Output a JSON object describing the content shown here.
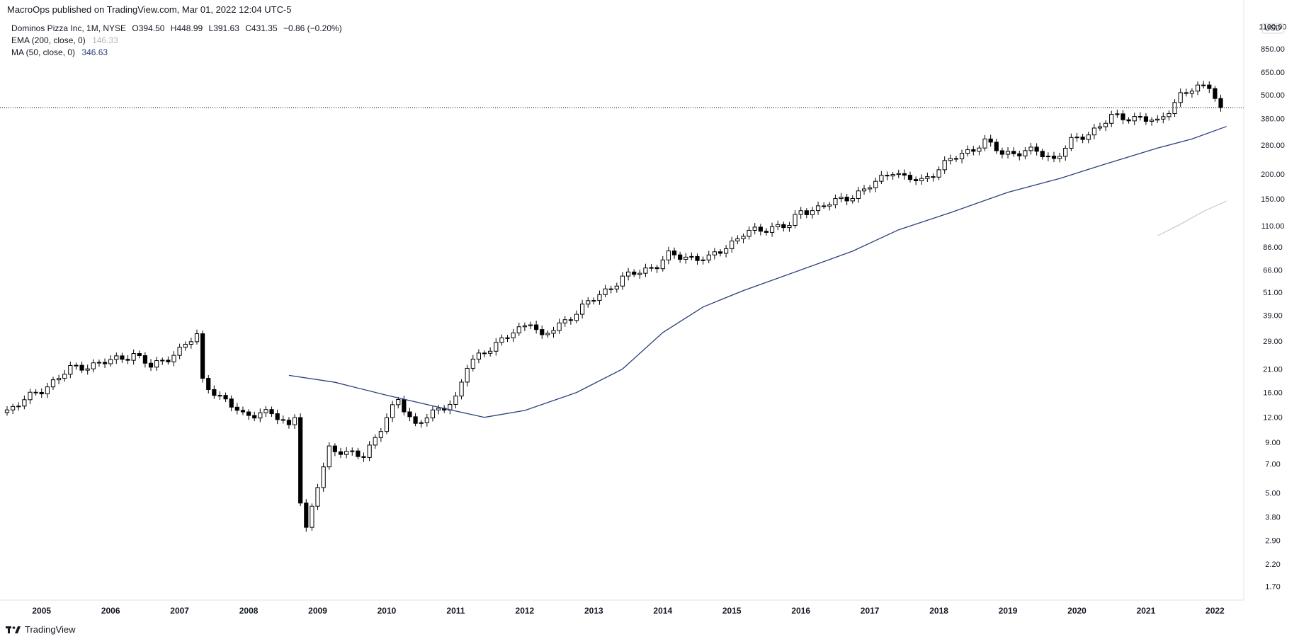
{
  "header": {
    "published_line": "MacroOps published on TradingView.com, Mar 01, 2022 12:04 UTC-5"
  },
  "legend": {
    "symbol": "Dominos Pizza Inc, 1M, NYSE",
    "open": "O394.50",
    "high": "H448.99",
    "low": "L391.63",
    "close": "C431.35",
    "change": "−0.86 (−0.20%)",
    "ema_label": "EMA (200, close, 0)",
    "ema_value": "146.33",
    "ma_label": "MA (50, close, 0)",
    "ma_value": "346.63"
  },
  "footer": {
    "brand": "TradingView"
  },
  "colors": {
    "candle_up_fill": "#ffffff",
    "candle_down_fill": "#000000",
    "candle_border": "#000000",
    "ma_line": "#2a3f7a",
    "ema_line": "#c8cace",
    "price_line": "#000000"
  },
  "chart_data": {
    "type": "candlestick",
    "title": "Dominos Pizza Inc, 1M, NYSE",
    "y_scale": "log",
    "currency": "USD",
    "y_ticks": [
      1100,
      850,
      650,
      500,
      380,
      280,
      200,
      150,
      110,
      86,
      66,
      51,
      39,
      29,
      21,
      16,
      12,
      9,
      7,
      5,
      3.8,
      2.9,
      2.2,
      1.7
    ],
    "y_tick_labels": [
      "1100.00",
      "850.00",
      "650.00",
      "500.00",
      "380.00",
      "280.00",
      "200.00",
      "150.00",
      "110.00",
      "86.00",
      "66.00",
      "51.00",
      "39.00",
      "29.00",
      "21.00",
      "16.00",
      "12.00",
      "9.00",
      "7.00",
      "5.00",
      "3.80",
      "2.90",
      "2.20",
      "1.70"
    ],
    "y_axis_unit": "USD",
    "x_ticks": [
      "2005",
      "2006",
      "2007",
      "2008",
      "2009",
      "2010",
      "2011",
      "2012",
      "2013",
      "2014",
      "2015",
      "2016",
      "2017",
      "2018",
      "2019",
      "2020",
      "2021",
      "2022"
    ],
    "x_range": [
      "2004-07",
      "2022-06"
    ],
    "y_range": [
      1.45,
      1250
    ],
    "current_close": 431.35,
    "anchors": [
      [
        "2004-07",
        13.0
      ],
      [
        "2005-01",
        16.5
      ],
      [
        "2005-06",
        21.0
      ],
      [
        "2006-01",
        23.0
      ],
      [
        "2006-05",
        25.0
      ],
      [
        "2006-08",
        21.5
      ],
      [
        "2007-01",
        26.0
      ],
      [
        "2007-04",
        31.0
      ],
      [
        "2007-05",
        18.5
      ],
      [
        "2007-08",
        15.0
      ],
      [
        "2007-12",
        12.5
      ],
      [
        "2008-05",
        12.5
      ],
      [
        "2008-08",
        11.0
      ],
      [
        "2008-09",
        12.5
      ],
      [
        "2008-10",
        4.5
      ],
      [
        "2008-11",
        3.2
      ],
      [
        "2009-01",
        5.5
      ],
      [
        "2009-03",
        8.5
      ],
      [
        "2009-06",
        7.8
      ],
      [
        "2009-09",
        7.8
      ],
      [
        "2009-12",
        10.5
      ],
      [
        "2010-03",
        14.8
      ],
      [
        "2010-06",
        11.0
      ],
      [
        "2010-09",
        12.5
      ],
      [
        "2011-01",
        15.0
      ],
      [
        "2011-03",
        21.5
      ],
      [
        "2011-06",
        26.0
      ],
      [
        "2011-12",
        33.0
      ],
      [
        "2012-02",
        37.0
      ],
      [
        "2012-04",
        30.0
      ],
      [
        "2012-12",
        45.0
      ],
      [
        "2013-06",
        60.0
      ],
      [
        "2013-12",
        70.0
      ],
      [
        "2014-02",
        78.0
      ],
      [
        "2014-09",
        75.0
      ],
      [
        "2015-03",
        100.0
      ],
      [
        "2015-09",
        110.0
      ],
      [
        "2015-11",
        110.0
      ],
      [
        "2016-01",
        130.0
      ],
      [
        "2016-04",
        135.0
      ],
      [
        "2016-12",
        165.0
      ],
      [
        "2017-05",
        210.0
      ],
      [
        "2017-07",
        190.0
      ],
      [
        "2017-10",
        185.0
      ],
      [
        "2018-03",
        235.0
      ],
      [
        "2018-09",
        290.0
      ],
      [
        "2018-12",
        255.0
      ],
      [
        "2019-06",
        260.0
      ],
      [
        "2019-09",
        238.0
      ],
      [
        "2019-12",
        290.0
      ],
      [
        "2020-03",
        320.0
      ],
      [
        "2020-07",
        385.0
      ],
      [
        "2020-12",
        385.0
      ],
      [
        "2021-03",
        360.0
      ],
      [
        "2021-07",
        500.0
      ],
      [
        "2021-12",
        565.0
      ],
      [
        "2022-02",
        431.0
      ]
    ],
    "series": [
      {
        "name": "MA (50, close, 0)",
        "points": [
          [
            "2008-08",
            19.5
          ],
          [
            "2009-04",
            18.0
          ],
          [
            "2010-01",
            15.5
          ],
          [
            "2010-10",
            13.5
          ],
          [
            "2011-06",
            12.0
          ],
          [
            "2012-01",
            13.0
          ],
          [
            "2012-10",
            16.0
          ],
          [
            "2013-06",
            21.0
          ],
          [
            "2014-01",
            32.0
          ],
          [
            "2014-08",
            43.0
          ],
          [
            "2015-03",
            52.0
          ],
          [
            "2016-01",
            66.0
          ],
          [
            "2016-10",
            82.0
          ],
          [
            "2017-06",
            105.0
          ],
          [
            "2018-03",
            128.0
          ],
          [
            "2019-01",
            162.0
          ],
          [
            "2019-10",
            190.0
          ],
          [
            "2020-06",
            225.0
          ],
          [
            "2021-03",
            270.0
          ],
          [
            "2021-09",
            300.0
          ],
          [
            "2022-03",
            346.63
          ]
        ]
      },
      {
        "name": "EMA (200, close, 0)",
        "points": [
          [
            "2021-03",
            98.0
          ],
          [
            "2021-07",
            112.0
          ],
          [
            "2021-11",
            130.0
          ],
          [
            "2022-03",
            146.33
          ]
        ]
      }
    ]
  }
}
